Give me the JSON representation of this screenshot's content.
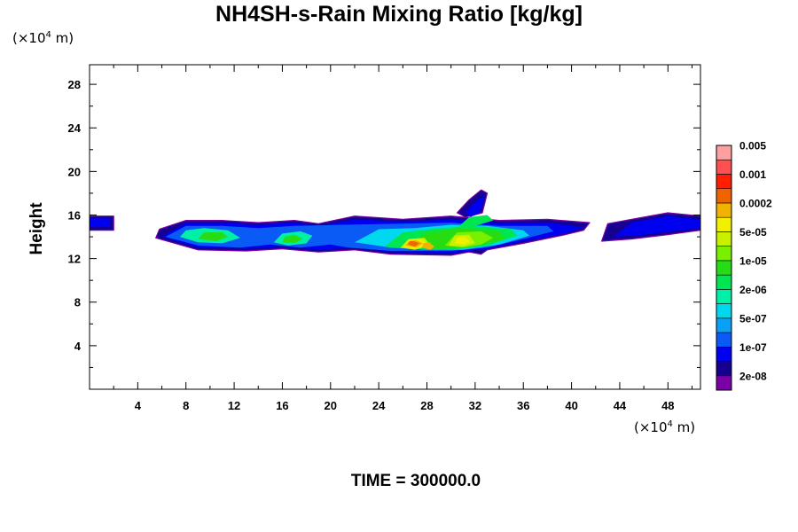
{
  "chart_data": {
    "type": "heatmap",
    "title": "NH4SH-s-Rain Mixing Ratio [kg/kg]",
    "xlabel": "",
    "ylabel": "Height",
    "unit_y": {
      "prefix": "(×10",
      "exp": "4",
      "suffix": " m)"
    },
    "unit_x": {
      "prefix": "(×10",
      "exp": "4",
      "suffix": " m)"
    },
    "xlim": [
      0,
      50.7
    ],
    "ylim": [
      0,
      29.8
    ],
    "x_ticks": [
      4,
      8,
      12,
      16,
      20,
      24,
      28,
      32,
      36,
      40,
      44,
      48
    ],
    "y_ticks": [
      4,
      8,
      12,
      16,
      20,
      24,
      28
    ],
    "colorbar": {
      "colors": [
        "#7a00a8",
        "#150090",
        "#0000f0",
        "#0a5af5",
        "#0aa0f5",
        "#00d8f0",
        "#00f0a8",
        "#00e650",
        "#28dc14",
        "#78f000",
        "#c8f000",
        "#f0f000",
        "#f0b400",
        "#f06400",
        "#ff1e00",
        "#ff5050",
        "#ffa0a0"
      ],
      "labels": [
        "2e-08",
        "1e-07",
        "5e-07",
        "2e-06",
        "1e-05",
        "5e-05",
        "0.0002",
        "0.001",
        "0.005"
      ]
    },
    "regions": [
      {
        "level": 1,
        "x": [
          0,
          2,
          2,
          0
        ],
        "y": [
          14.6,
          14.6,
          15.9,
          15.9
        ]
      },
      {
        "level": 2,
        "x": [
          0,
          1.7,
          1.7,
          0
        ],
        "y": [
          14.9,
          14.9,
          15.7,
          15.7
        ]
      },
      {
        "level": 1,
        "x": [
          5.5,
          9,
          13,
          16,
          19,
          22,
          25,
          30,
          31.5,
          32.5,
          33,
          36,
          39.5,
          41,
          41.5,
          38,
          34,
          30,
          26,
          22,
          19,
          17,
          14,
          11,
          8,
          5.8
        ],
        "y": [
          13.9,
          12.8,
          12.7,
          12.9,
          12.6,
          12.8,
          12.4,
          12.3,
          12.6,
          12.4,
          12.8,
          13.4,
          14.2,
          14.6,
          15.3,
          15.6,
          15.5,
          15.9,
          15.6,
          15.9,
          15.2,
          15.5,
          15.3,
          15.5,
          15.5,
          14.7
        ]
      },
      {
        "level": 1,
        "x": [
          30.5,
          31.5,
          32.5,
          33,
          32.6,
          31.2
        ],
        "y": [
          16.2,
          17.4,
          18.3,
          18.0,
          16.2,
          15.8
        ]
      },
      {
        "level": 1,
        "x": [
          42.5,
          45,
          48,
          50.7,
          50.7,
          48,
          45,
          43
        ],
        "y": [
          13.6,
          13.8,
          14.2,
          14.6,
          15.9,
          16.2,
          15.6,
          15.2
        ]
      },
      {
        "level": 2,
        "x": [
          6,
          9,
          13,
          16,
          19,
          22,
          25,
          30,
          33,
          36,
          39.5,
          41,
          38,
          34,
          30,
          26,
          22,
          19,
          17,
          14,
          11,
          8
        ],
        "y": [
          14.0,
          13.0,
          12.9,
          13.1,
          12.8,
          13.0,
          12.6,
          12.5,
          12.9,
          13.6,
          14.3,
          14.9,
          15.3,
          15.3,
          15.6,
          15.4,
          15.6,
          15.0,
          15.3,
          15.1,
          15.3,
          15.3
        ]
      },
      {
        "level": 3,
        "x": [
          6.3,
          9,
          12.5,
          15,
          17.5,
          20,
          21.5,
          25,
          30,
          33,
          36,
          38.5,
          38,
          34,
          30,
          26,
          21,
          17,
          14,
          11,
          8
        ],
        "y": [
          14.0,
          13.2,
          13.0,
          13.3,
          13.0,
          13.3,
          13.0,
          12.7,
          12.7,
          13.0,
          13.8,
          14.5,
          15.0,
          15.0,
          15.3,
          15.2,
          15.1,
          15.0,
          14.8,
          15.0,
          15.0
        ]
      },
      {
        "level": 2,
        "x": [
          43.5,
          46,
          49,
          50.7,
          50.7,
          48,
          45
        ],
        "y": [
          14.0,
          14.2,
          14.6,
          14.8,
          15.6,
          15.9,
          15.3
        ]
      },
      {
        "level": 2,
        "x": [
          31.2,
          32.2,
          32.8,
          32.4,
          31.6
        ],
        "y": [
          16.3,
          17.4,
          17.8,
          16.2,
          15.8
        ]
      },
      {
        "level": 5,
        "x": [
          22,
          25,
          28,
          31,
          34,
          36.5,
          36,
          33,
          30,
          27,
          24
        ],
        "y": [
          13.5,
          13.0,
          12.8,
          12.8,
          13.3,
          14.1,
          14.6,
          15.0,
          15.1,
          14.8,
          14.7
        ]
      },
      {
        "level": 6,
        "x": [
          7.5,
          9,
          11,
          12.5,
          11.5,
          9.5,
          8
        ],
        "y": [
          14.0,
          13.5,
          13.4,
          13.9,
          14.6,
          14.8,
          14.6
        ]
      },
      {
        "level": 6,
        "x": [
          15.3,
          16.5,
          18,
          18.5,
          17.5,
          16
        ],
        "y": [
          13.5,
          13.2,
          13.4,
          14.1,
          14.5,
          14.3
        ]
      },
      {
        "level": 7,
        "x": [
          24.5,
          27,
          30,
          33,
          35.5,
          35,
          32,
          29,
          26
        ],
        "y": [
          13.1,
          12.9,
          12.8,
          13.2,
          14.1,
          14.7,
          15.0,
          14.8,
          14.4
        ]
      },
      {
        "level": 7,
        "x": [
          30.5,
          32,
          33.5,
          33,
          31.5
        ],
        "y": [
          14.8,
          15.0,
          15.5,
          16.0,
          15.8
        ]
      },
      {
        "level": 8,
        "x": [
          9,
          10.5,
          11.5,
          11,
          9.5
        ],
        "y": [
          13.8,
          13.6,
          14.0,
          14.4,
          14.4
        ]
      },
      {
        "level": 8,
        "x": [
          16,
          17,
          17.7,
          17,
          16.2
        ],
        "y": [
          13.5,
          13.4,
          13.8,
          14.2,
          14.0
        ]
      },
      {
        "level": 8,
        "x": [
          26,
          29,
          32,
          34.5,
          34,
          31,
          28
        ],
        "y": [
          13.0,
          12.9,
          13.1,
          13.8,
          14.5,
          14.8,
          14.4
        ]
      },
      {
        "level": 9,
        "x": [
          29.5,
          31,
          32.5,
          33.5,
          32.5,
          30.5
        ],
        "y": [
          13.2,
          13.0,
          13.3,
          13.9,
          14.5,
          14.4
        ]
      },
      {
        "level": 10,
        "x": [
          25.8,
          27,
          28.3,
          27.8,
          26.5
        ],
        "y": [
          13.0,
          12.8,
          13.2,
          13.9,
          13.8
        ]
      },
      {
        "level": 10,
        "x": [
          29.8,
          31,
          32,
          31.5,
          30.3
        ],
        "y": [
          13.2,
          13.1,
          13.4,
          14.2,
          14.1
        ]
      },
      {
        "level": 11,
        "x": [
          26,
          27,
          28,
          27.5,
          26.4
        ],
        "y": [
          13.1,
          12.9,
          13.3,
          13.8,
          13.7
        ]
      },
      {
        "level": 11,
        "x": [
          30.3,
          31.2,
          31.6,
          31.1,
          30.5
        ],
        "y": [
          13.4,
          13.3,
          13.6,
          14.0,
          13.9
        ]
      },
      {
        "level": 12,
        "x": [
          26.2,
          27.1,
          27.7,
          27.1,
          26.5
        ],
        "y": [
          13.2,
          13.0,
          13.4,
          13.7,
          13.6
        ]
      },
      {
        "level": 12,
        "x": [
          27.6,
          28.3,
          28.6,
          28.2,
          27.7
        ],
        "y": [
          13.0,
          12.8,
          13.1,
          13.5,
          13.4
        ]
      },
      {
        "level": 13,
        "x": [
          26.4,
          27.0,
          27.4,
          26.9,
          26.6
        ],
        "y": [
          13.3,
          13.1,
          13.4,
          13.6,
          13.6
        ]
      }
    ]
  },
  "time_label": "TIME = 300000.0"
}
